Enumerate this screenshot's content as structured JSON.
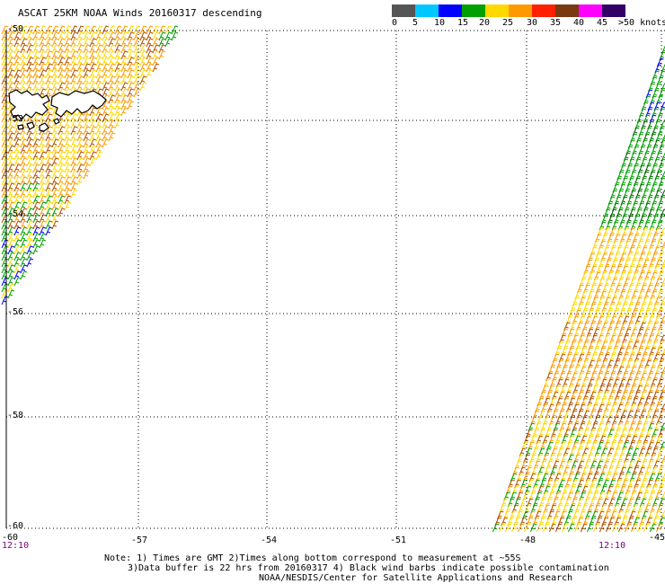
{
  "title": "ASCAT 25KM NOAA Winds 20160317 descending",
  "scale": {
    "labels": [
      "0",
      "5",
      "10",
      "15",
      "20",
      "25",
      "30",
      "35",
      "40",
      "45",
      ">50 knots"
    ],
    "colors": [
      "#555555",
      "#1a1a1a",
      "#00c8ff",
      "#0000ff",
      "#00a000",
      "#ffd800",
      "#ff9900",
      "#ff2000",
      "#b02020",
      "#7a3a10",
      "#ff00ff",
      "#9900cc",
      "#330066"
    ]
  },
  "map": {
    "lat_labels": [
      "-50",
      "-52",
      "-54",
      "-56",
      "-58",
      "-60"
    ],
    "lon_labels": [
      "-60",
      "-57",
      "-54",
      "-51",
      "-48",
      "-45"
    ],
    "land": "Falkland Islands coastline",
    "times": {
      "left": "12:10",
      "right": "12:10"
    },
    "swaths": [
      {
        "name": "west-swath",
        "dominant_colors": [
          "#ffd800",
          "#ff9900",
          "#b05000",
          "#00a000"
        ]
      },
      {
        "name": "east-swath",
        "dominant_colors": [
          "#00a000",
          "#ffd800",
          "#ff9900",
          "#b05000"
        ]
      }
    ]
  },
  "notes": [
    "Note: 1) Times are GMT 2)Times along bottom correspond to measurement at ~55S",
    "3)Data buffer is 22 hrs from 20160317 4) Black wind barbs indicate possible contamination",
    "NOAA/NESDIS/Center for Satellite Applications and Research"
  ]
}
